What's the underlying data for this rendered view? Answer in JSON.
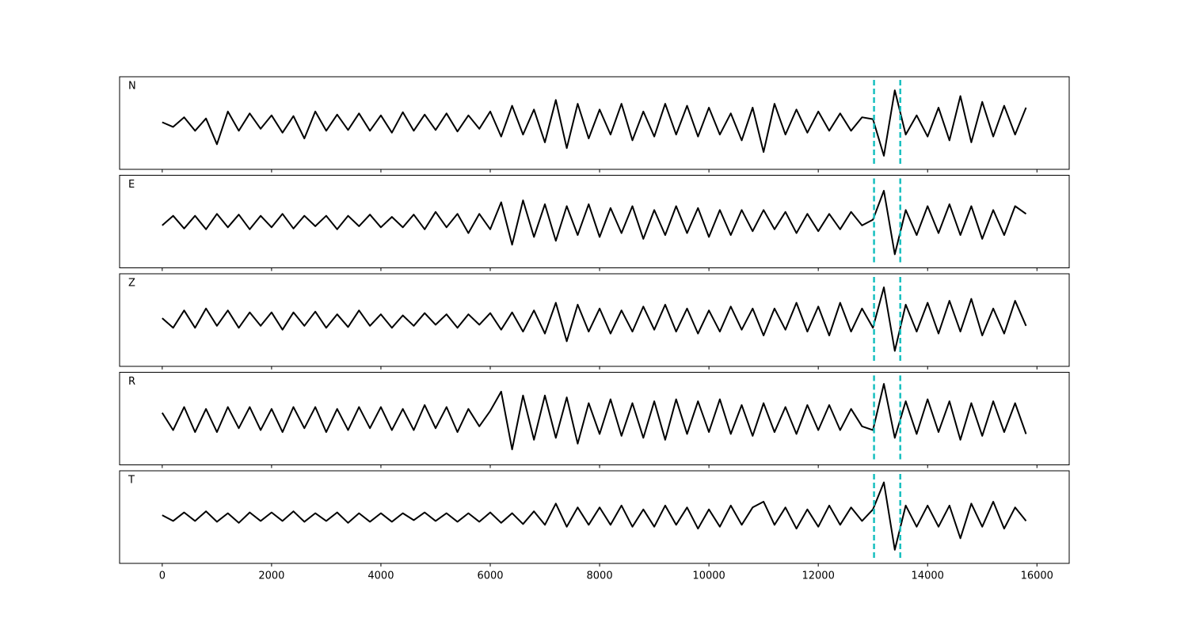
{
  "chart_data": {
    "type": "line",
    "subplots": true,
    "x": [
      0,
      200,
      400,
      600,
      800,
      1000,
      1200,
      1400,
      1600,
      1800,
      2000,
      2200,
      2400,
      2600,
      2800,
      3000,
      3200,
      3400,
      3600,
      3800,
      4000,
      4200,
      4400,
      4600,
      4800,
      5000,
      5200,
      5400,
      5600,
      5800,
      6000,
      6200,
      6400,
      6600,
      6800,
      7000,
      7200,
      7400,
      7600,
      7800,
      8000,
      8200,
      8400,
      8600,
      8800,
      9000,
      9200,
      9400,
      9600,
      9800,
      10000,
      10200,
      10400,
      10600,
      10800,
      11000,
      11200,
      11400,
      11600,
      11800,
      12000,
      12200,
      12400,
      12600,
      12800,
      13000,
      13200,
      13400,
      13600,
      13800,
      14000,
      14200,
      14400,
      14600,
      14800,
      15000,
      15200,
      15400,
      15600,
      15800
    ],
    "series": [
      {
        "name": "N",
        "color": "#000000",
        "values": [
          0.02,
          -0.1,
          0.15,
          -0.2,
          0.12,
          -0.55,
          0.3,
          -0.2,
          0.25,
          -0.15,
          0.2,
          -0.25,
          0.18,
          -0.4,
          0.3,
          -0.2,
          0.22,
          -0.18,
          0.25,
          -0.2,
          0.2,
          -0.25,
          0.28,
          -0.2,
          0.22,
          -0.18,
          0.25,
          -0.22,
          0.2,
          -0.15,
          0.3,
          -0.35,
          0.45,
          -0.3,
          0.35,
          -0.5,
          0.6,
          -0.65,
          0.5,
          -0.4,
          0.35,
          -0.3,
          0.5,
          -0.45,
          0.3,
          -0.35,
          0.5,
          -0.3,
          0.45,
          -0.35,
          0.4,
          -0.3,
          0.25,
          -0.45,
          0.4,
          -0.75,
          0.5,
          -0.3,
          0.35,
          -0.25,
          0.3,
          -0.2,
          0.25,
          -0.2,
          0.15,
          0.1,
          -0.85,
          0.85,
          -0.3,
          0.2,
          -0.35,
          0.4,
          -0.45,
          0.7,
          -0.5,
          0.55,
          -0.35,
          0.45,
          -0.3,
          0.4
        ]
      },
      {
        "name": "E",
        "color": "#000000",
        "values": [
          -0.1,
          0.15,
          -0.18,
          0.15,
          -0.2,
          0.2,
          -0.15,
          0.18,
          -0.2,
          0.15,
          -0.15,
          0.2,
          -0.18,
          0.15,
          -0.12,
          0.15,
          -0.2,
          0.15,
          -0.12,
          0.18,
          -0.15,
          0.12,
          -0.15,
          0.18,
          -0.2,
          0.25,
          -0.15,
          0.2,
          -0.3,
          0.2,
          -0.2,
          0.5,
          -0.6,
          0.55,
          -0.4,
          0.45,
          -0.5,
          0.4,
          -0.35,
          0.45,
          -0.4,
          0.35,
          -0.3,
          0.4,
          -0.45,
          0.3,
          -0.35,
          0.4,
          -0.3,
          0.35,
          -0.4,
          0.3,
          -0.35,
          0.3,
          -0.25,
          0.3,
          -0.2,
          0.25,
          -0.3,
          0.2,
          -0.25,
          0.2,
          -0.2,
          0.25,
          -0.1,
          0.05,
          0.8,
          -0.85,
          0.3,
          -0.35,
          0.4,
          -0.3,
          0.45,
          -0.35,
          0.4,
          -0.45,
          0.3,
          -0.35,
          0.4,
          0.2
        ]
      },
      {
        "name": "Z",
        "color": "#000000",
        "values": [
          0.05,
          -0.2,
          0.25,
          -0.2,
          0.3,
          -0.15,
          0.25,
          -0.2,
          0.2,
          -0.15,
          0.2,
          -0.25,
          0.2,
          -0.15,
          0.22,
          -0.2,
          0.15,
          -0.18,
          0.25,
          -0.15,
          0.15,
          -0.2,
          0.12,
          -0.15,
          0.18,
          -0.12,
          0.15,
          -0.2,
          0.15,
          -0.12,
          0.18,
          -0.25,
          0.2,
          -0.3,
          0.25,
          -0.35,
          0.45,
          -0.55,
          0.4,
          -0.3,
          0.3,
          -0.35,
          0.25,
          -0.3,
          0.35,
          -0.25,
          0.4,
          -0.3,
          0.3,
          -0.35,
          0.25,
          -0.3,
          0.35,
          -0.25,
          0.3,
          -0.4,
          0.3,
          -0.25,
          0.45,
          -0.3,
          0.35,
          -0.4,
          0.45,
          -0.3,
          0.3,
          -0.2,
          0.85,
          -0.8,
          0.4,
          -0.3,
          0.45,
          -0.35,
          0.5,
          -0.3,
          0.55,
          -0.4,
          0.3,
          -0.35,
          0.5,
          -0.15
        ]
      },
      {
        "name": "R",
        "color": "#000000",
        "values": [
          0.15,
          -0.3,
          0.3,
          -0.35,
          0.25,
          -0.35,
          0.3,
          -0.25,
          0.3,
          -0.3,
          0.25,
          -0.35,
          0.3,
          -0.25,
          0.3,
          -0.35,
          0.25,
          -0.3,
          0.3,
          -0.25,
          0.3,
          -0.3,
          0.25,
          -0.3,
          0.35,
          -0.25,
          0.3,
          -0.35,
          0.25,
          -0.2,
          0.2,
          0.7,
          -0.8,
          0.6,
          -0.55,
          0.6,
          -0.5,
          0.55,
          -0.65,
          0.4,
          -0.4,
          0.5,
          -0.45,
          0.4,
          -0.5,
          0.45,
          -0.55,
          0.5,
          -0.4,
          0.45,
          -0.35,
          0.5,
          -0.4,
          0.35,
          -0.45,
          0.4,
          -0.35,
          0.3,
          -0.4,
          0.35,
          -0.3,
          0.35,
          -0.3,
          0.25,
          -0.2,
          -0.3,
          0.9,
          -0.5,
          0.45,
          -0.4,
          0.5,
          -0.35,
          0.45,
          -0.55,
          0.4,
          -0.45,
          0.45,
          -0.35,
          0.4,
          -0.4
        ]
      },
      {
        "name": "T",
        "color": "#000000",
        "values": [
          0.05,
          -0.1,
          0.12,
          -0.1,
          0.15,
          -0.12,
          0.1,
          -0.15,
          0.12,
          -0.1,
          0.12,
          -0.1,
          0.15,
          -0.12,
          0.1,
          -0.1,
          0.12,
          -0.15,
          0.1,
          -0.12,
          0.1,
          -0.12,
          0.1,
          -0.08,
          0.12,
          -0.1,
          0.1,
          -0.12,
          0.1,
          -0.12,
          0.12,
          -0.15,
          0.1,
          -0.18,
          0.15,
          -0.2,
          0.35,
          -0.25,
          0.25,
          -0.2,
          0.25,
          -0.2,
          0.3,
          -0.25,
          0.2,
          -0.25,
          0.3,
          -0.2,
          0.25,
          -0.3,
          0.2,
          -0.25,
          0.3,
          -0.2,
          0.25,
          0.4,
          -0.2,
          0.25,
          -0.3,
          0.2,
          -0.25,
          0.3,
          -0.2,
          0.25,
          -0.1,
          0.2,
          0.9,
          -0.85,
          0.3,
          -0.25,
          0.3,
          -0.25,
          0.3,
          -0.55,
          0.35,
          -0.25,
          0.4,
          -0.3,
          0.25,
          -0.1
        ]
      }
    ],
    "vlines": [
      13020,
      13500
    ],
    "vline_color": "#17bfbf",
    "xlim": [
      -780,
      16590
    ],
    "xticks": [
      0,
      2000,
      4000,
      6000,
      8000,
      10000,
      12000,
      14000,
      16000
    ],
    "ylim": [
      -1.2,
      1.2
    ]
  }
}
